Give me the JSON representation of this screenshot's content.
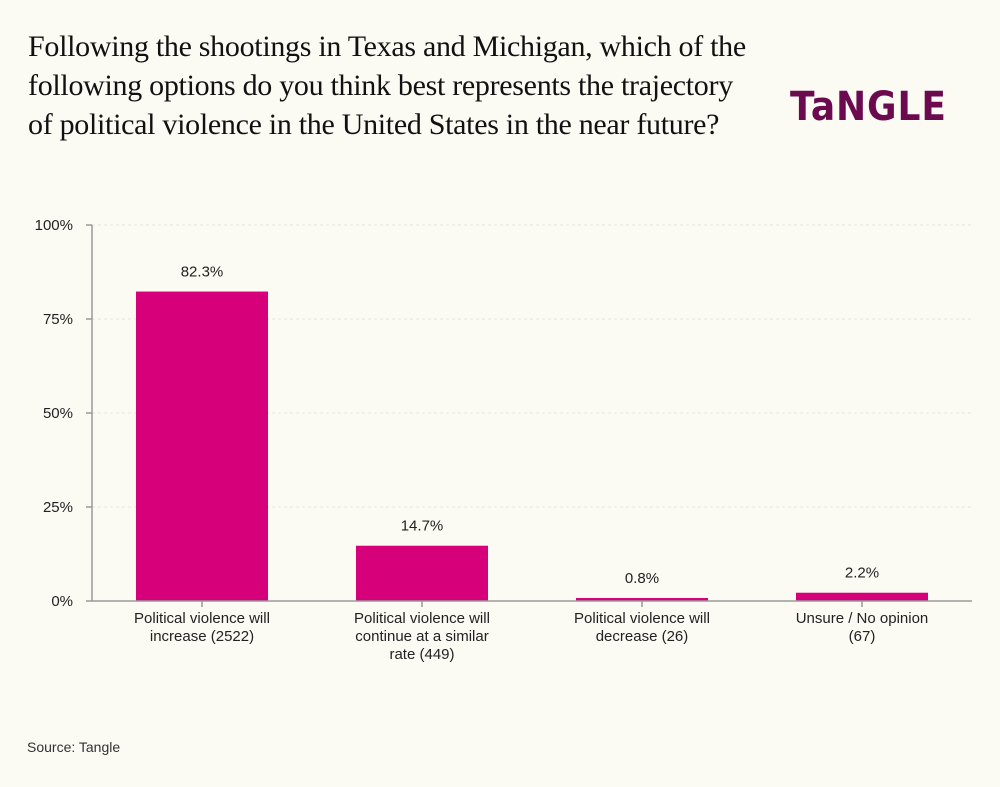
{
  "header": {
    "title": "Following the shootings in Texas and Michigan, which of the following options do you think best represents the trajectory of political violence in the United States in the near future?",
    "logo_text": "TaNGLE"
  },
  "footer": {
    "source": "Source: Tangle"
  },
  "colors": {
    "bar": "#d6007a",
    "logo": "#6b0a4f",
    "background": "#fbfaf3",
    "axis": "#999999",
    "grid": "#e6e4dc"
  },
  "chart_data": {
    "type": "bar",
    "title": "Following the shootings in Texas and Michigan, which of the following options do you think best represents the trajectory of political violence in the United States in the near future?",
    "xlabel": "",
    "ylabel": "",
    "ylim": [
      0,
      100
    ],
    "yticks": [
      0,
      25,
      50,
      75,
      100
    ],
    "ytick_labels": [
      "0%",
      "25%",
      "50%",
      "75%",
      "100%"
    ],
    "grid": true,
    "categories": [
      [
        "Political violence will",
        "increase (2522)"
      ],
      [
        "Political violence will",
        "continue at a similar",
        "rate (449)"
      ],
      [
        "Political violence will",
        "decrease (26)"
      ],
      [
        "Unsure / No opinion",
        "(67)"
      ]
    ],
    "values": [
      82.3,
      14.7,
      0.8,
      2.2
    ],
    "counts": [
      2522,
      449,
      26,
      67
    ],
    "data_labels": [
      "82.3%",
      "14.7%",
      "0.8%",
      "2.2%"
    ],
    "source": "Tangle"
  }
}
